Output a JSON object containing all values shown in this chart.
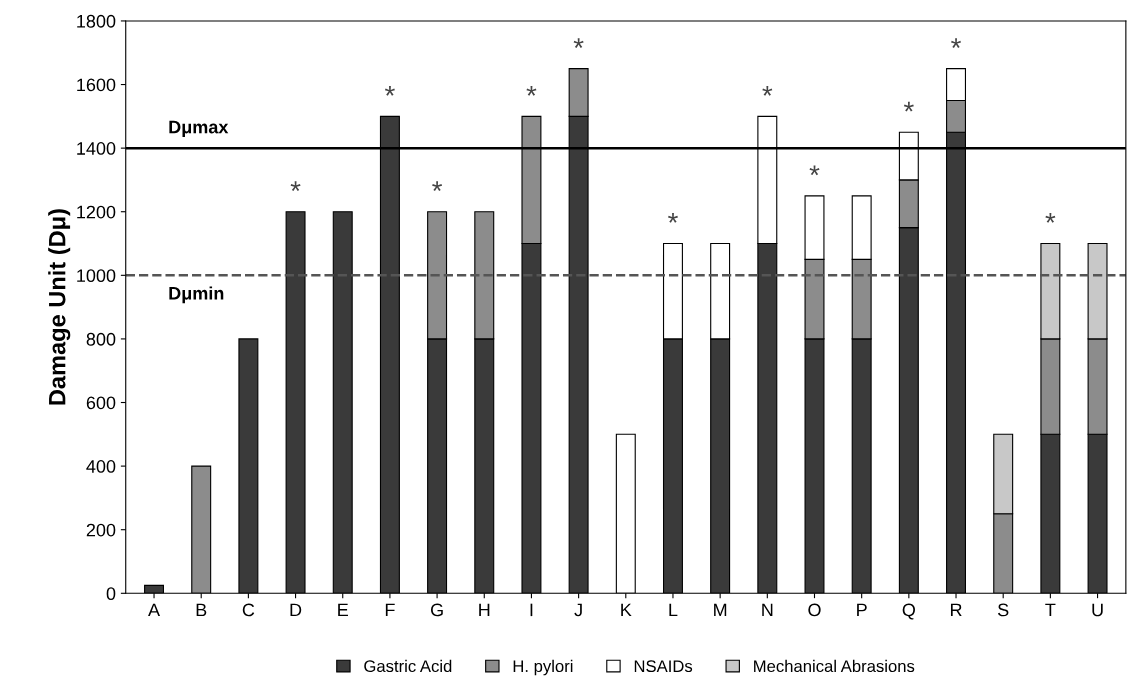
{
  "chart_data": {
    "type": "bar",
    "stacked": true,
    "ylabel": "Damage Unit (Dμ)",
    "categories": [
      "A",
      "B",
      "C",
      "D",
      "E",
      "F",
      "G",
      "H",
      "I",
      "J",
      "K",
      "L",
      "M",
      "N",
      "O",
      "P",
      "Q",
      "R",
      "S",
      "T",
      "U"
    ],
    "series": [
      {
        "name": "Gastric Acid",
        "color": "#3a3a3a",
        "values": [
          25,
          null,
          800,
          1200,
          1200,
          1500,
          800,
          800,
          1100,
          1500,
          null,
          800,
          800,
          1100,
          800,
          800,
          1150,
          1450,
          null,
          500,
          500
        ]
      },
      {
        "name": "H. pylori",
        "color": "#8c8c8c",
        "values": [
          null,
          400,
          null,
          null,
          null,
          null,
          400,
          400,
          400,
          150,
          null,
          null,
          null,
          null,
          250,
          250,
          150,
          100,
          250,
          300,
          300
        ]
      },
      {
        "name": "NSAIDs",
        "color": "#ffffff",
        "values": [
          null,
          null,
          null,
          null,
          null,
          null,
          null,
          null,
          null,
          null,
          500,
          300,
          300,
          400,
          200,
          200,
          150,
          100,
          null,
          null,
          null
        ]
      },
      {
        "name": "Mechanical Abrasions",
        "color": "#c8c8c8",
        "values": [
          null,
          null,
          null,
          null,
          null,
          null,
          null,
          null,
          null,
          null,
          null,
          null,
          null,
          null,
          null,
          null,
          null,
          null,
          250,
          300,
          300
        ]
      }
    ],
    "ylim": [
      0,
      1800
    ],
    "yticks": [
      0,
      200,
      400,
      600,
      800,
      1000,
      1200,
      1400,
      1600,
      1800
    ],
    "ref_lines": [
      {
        "axis": "y",
        "value": 1400,
        "label": "Dμmax",
        "color": "#000000",
        "line_style": "solid"
      },
      {
        "axis": "y",
        "value": 1000,
        "label": "Dμmin",
        "color": "#555555",
        "line_style": "dashed"
      }
    ],
    "annotations": [
      {
        "text": "*",
        "x": "D",
        "y": 1200
      },
      {
        "text": "*",
        "x": "F",
        "y": 1500
      },
      {
        "text": "*",
        "x": "G",
        "y": 1200
      },
      {
        "text": "*",
        "x": "I",
        "y": 1500
      },
      {
        "text": "*",
        "x": "J",
        "y": 1650
      },
      {
        "text": "*",
        "x": "L",
        "y": 1100
      },
      {
        "text": "*",
        "x": "N",
        "y": 1500
      },
      {
        "text": "*",
        "x": "O",
        "y": 1250
      },
      {
        "text": "*",
        "x": "Q",
        "y": 1450
      },
      {
        "text": "*",
        "x": "R",
        "y": 1650
      },
      {
        "text": "*",
        "x": "T",
        "y": 1100
      }
    ],
    "grid": false,
    "legend": "bottom"
  }
}
